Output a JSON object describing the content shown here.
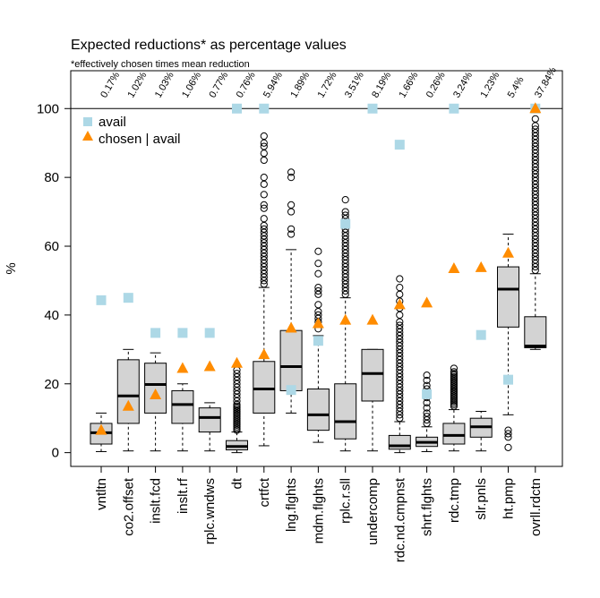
{
  "chart_data": {
    "type": "boxplot",
    "title": "Expected reductions* as percentage values",
    "subtitle": "*effectively chosen times mean reduction",
    "xlabel": "",
    "ylabel": "%",
    "ylim": [
      -4,
      111
    ],
    "yticks": [
      0,
      20,
      40,
      60,
      80,
      100
    ],
    "reference_line": 100,
    "legend_position": "top-left",
    "colors": {
      "box_fill": "#d3d3d3",
      "avail": "#add8e6",
      "chosen": "#ff8c00"
    },
    "legend": [
      {
        "label": "avail",
        "marker": "square"
      },
      {
        "label": "chosen | avail",
        "marker": "triangle"
      }
    ],
    "categories": [
      "vntltn",
      "co2.offset",
      "inslt.fcd",
      "inslt.rf",
      "rplc.wndws",
      "dt",
      "crtfct",
      "lng.flghts",
      "mdm.flghts",
      "rplc.r.sll",
      "undercomp",
      "rdc.nd.cmpnst",
      "shrt.flghts",
      "rdc.tmp",
      "slr.pnls",
      "ht.pmp",
      "ovrll.rdctn"
    ],
    "percent_labels": [
      "0.17%",
      "1.02%",
      "1.03%",
      "1.06%",
      "0.77%",
      "0.76%",
      "5.94%",
      "1.89%",
      "1.72%",
      "3.51%",
      "8.19%",
      "1.66%",
      "0.26%",
      "3.24%",
      "1.23%",
      "5.4%",
      "37.84%"
    ],
    "boxes": [
      {
        "min": 0.3,
        "q1": 2.5,
        "median": 5.8,
        "q3": 8.5,
        "max": 11.5,
        "outliers": []
      },
      {
        "min": 0.5,
        "q1": 8.5,
        "median": 16.5,
        "q3": 27,
        "max": 30,
        "outliers": []
      },
      {
        "min": 0.5,
        "q1": 11.5,
        "median": 19.8,
        "q3": 26,
        "max": 29,
        "outliers": []
      },
      {
        "min": 0.5,
        "q1": 8.5,
        "median": 14,
        "q3": 18,
        "max": 20,
        "outliers": []
      },
      {
        "min": 0.5,
        "q1": 6,
        "median": 10.2,
        "q3": 13,
        "max": 14.5,
        "outliers": []
      },
      {
        "min": 0,
        "q1": 0.8,
        "median": 1.8,
        "q3": 3.5,
        "max": 6,
        "outliers": [
          6.5,
          7,
          7.5,
          8,
          8.5,
          9,
          9.5,
          10,
          10.5,
          11,
          11.5,
          12,
          12.5,
          13,
          13.5,
          14,
          15,
          16,
          17,
          18,
          19,
          20,
          21,
          22,
          23,
          24
        ]
      },
      {
        "min": 2,
        "q1": 11.5,
        "median": 18.5,
        "q3": 26.5,
        "max": 48,
        "outliers": [
          49,
          50,
          51,
          52,
          53,
          54,
          55,
          56,
          57,
          58,
          59,
          60,
          61,
          62,
          63,
          64,
          65,
          66,
          68,
          71,
          72,
          75,
          78,
          80,
          85,
          87,
          89,
          90,
          92
        ]
      },
      {
        "min": 11.5,
        "q1": 18,
        "median": 25,
        "q3": 35.5,
        "max": 59,
        "outliers": [
          63.5,
          65,
          70,
          72,
          80,
          81.5
        ]
      },
      {
        "min": 3,
        "q1": 6.5,
        "median": 11,
        "q3": 18.5,
        "max": 34,
        "outliers": [
          36,
          38,
          39,
          40,
          41,
          43,
          46,
          47,
          48,
          52,
          55,
          58.5
        ]
      },
      {
        "min": 0.5,
        "q1": 4,
        "median": 9,
        "q3": 20,
        "max": 45,
        "outliers": [
          46,
          47,
          48,
          49,
          50,
          51,
          52,
          53,
          54,
          55,
          56,
          57,
          58,
          59,
          60,
          61,
          62,
          63,
          64,
          65,
          66,
          67,
          68,
          69,
          70,
          73.5
        ]
      },
      {
        "min": 0.5,
        "q1": 15,
        "median": 23,
        "q3": 30,
        "max": 30,
        "outliers": []
      },
      {
        "min": 0,
        "q1": 1,
        "median": 2,
        "q3": 5,
        "max": 9,
        "outliers": [
          10,
          11,
          12,
          13,
          14,
          15,
          16,
          17,
          18,
          19,
          20,
          21,
          22,
          23,
          24,
          25,
          26,
          27,
          28,
          29,
          30,
          31,
          32,
          33,
          34,
          35,
          36,
          37,
          38,
          40,
          42,
          44,
          46,
          48,
          50.5
        ]
      },
      {
        "min": 0.3,
        "q1": 1.8,
        "median": 3,
        "q3": 4.5,
        "max": 7.5,
        "outliers": [
          8.5,
          9.5,
          10.5,
          11.5,
          13,
          14.5,
          16,
          17.5,
          18.5,
          19.5,
          21,
          22.5
        ]
      },
      {
        "min": 0.5,
        "q1": 2.5,
        "median": 5,
        "q3": 8.5,
        "max": 12.5,
        "outliers": [
          13.5,
          14,
          14.5,
          15,
          15.5,
          16,
          16.5,
          17,
          17.5,
          18,
          18.5,
          19,
          19.5,
          20,
          20.5,
          21,
          21.5,
          22,
          22.5,
          23,
          23.5,
          24.5
        ]
      },
      {
        "min": 0.5,
        "q1": 4.5,
        "median": 7.5,
        "q3": 10,
        "max": 12,
        "outliers": []
      },
      {
        "min": 11,
        "q1": 36.5,
        "median": 47.5,
        "q3": 54,
        "max": 63.5,
        "outliers": [
          1.5,
          4.5,
          5.5,
          6.5
        ]
      },
      {
        "min": 30,
        "q1": 30.5,
        "median": 31,
        "q3": 39.5,
        "max": 52,
        "outliers": [
          53,
          54,
          55,
          56,
          57,
          58,
          59,
          60,
          61,
          62,
          63,
          64,
          65,
          66,
          67,
          68,
          69,
          70,
          71,
          72,
          73,
          74,
          75,
          76,
          77,
          78,
          79,
          80,
          81,
          82,
          83,
          84,
          85,
          86,
          87,
          88,
          89,
          90,
          91,
          92,
          93,
          94,
          95,
          97,
          100
        ]
      }
    ],
    "series": [
      {
        "name": "avail",
        "marker": "square",
        "values": [
          44.3,
          45,
          34.8,
          34.8,
          34.8,
          100,
          100,
          18.2,
          32.5,
          66.5,
          100,
          89.5,
          17,
          100,
          34.2,
          21.2,
          100
        ]
      },
      {
        "name": "chosen | avail",
        "marker": "triangle",
        "values": [
          6.5,
          13.5,
          16.8,
          24.5,
          25,
          26,
          28.5,
          36.2,
          37.5,
          38.5,
          38.5,
          43,
          43.5,
          53.5,
          53.8,
          58,
          100
        ]
      }
    ]
  }
}
